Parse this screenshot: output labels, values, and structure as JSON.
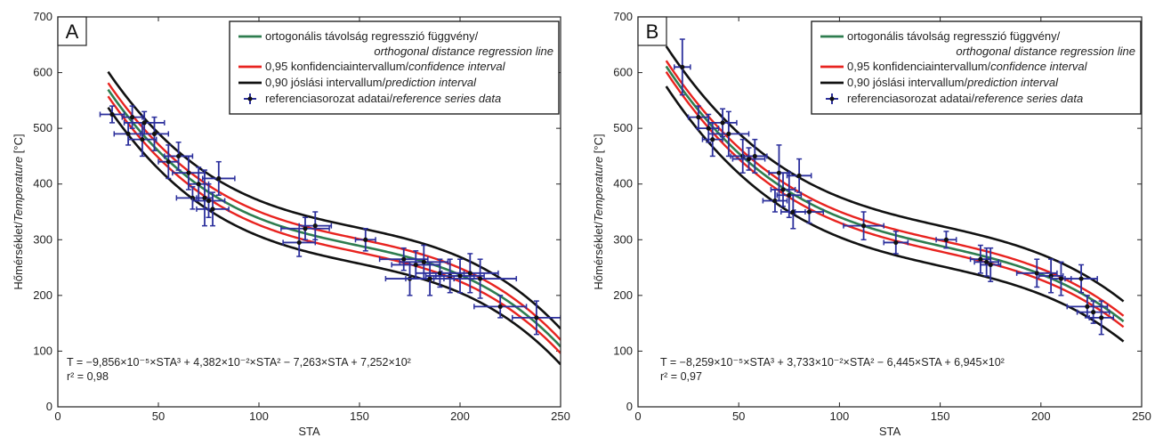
{
  "chart_data": [
    {
      "type": "scatter",
      "panel_label": "A",
      "xlabel": "STA",
      "ylabel_main": "Hőmérséklet/",
      "ylabel_italic": "Temperature",
      "ylabel_unit": " [°C]",
      "xlim": [
        0,
        250
      ],
      "ylim": [
        0,
        700
      ],
      "xticks": [
        "0",
        "50",
        "100",
        "150",
        "200",
        "250"
      ],
      "yticks": [
        "0",
        "100",
        "200",
        "300",
        "400",
        "500",
        "600",
        "700"
      ],
      "equation": "T = −9,856×10⁻⁵×STA³ + 4,382×10⁻²×STA² − 7,263×STA + 7,252×10²",
      "r2": "r² = 0,98",
      "coefficients": [
        -9.856e-05,
        0.04382,
        -7.263,
        725.2
      ],
      "curve_range": [
        25,
        250
      ],
      "bands": {
        "confidence": 12,
        "prediction": 32
      },
      "points": [
        {
          "x": 27,
          "y": 525,
          "xerr": 6,
          "yerr": 15
        },
        {
          "x": 35,
          "y": 490,
          "xerr": 7,
          "yerr": 20
        },
        {
          "x": 37,
          "y": 520,
          "xerr": 5,
          "yerr": 20
        },
        {
          "x": 42,
          "y": 480,
          "xerr": 7,
          "yerr": 30
        },
        {
          "x": 43,
          "y": 510,
          "xerr": 10,
          "yerr": 20
        },
        {
          "x": 48,
          "y": 490,
          "xerr": 7,
          "yerr": 30
        },
        {
          "x": 55,
          "y": 440,
          "xerr": 5,
          "yerr": 30
        },
        {
          "x": 60,
          "y": 450,
          "xerr": 7,
          "yerr": 25
        },
        {
          "x": 65,
          "y": 420,
          "xerr": 8,
          "yerr": 30
        },
        {
          "x": 67,
          "y": 375,
          "xerr": 8,
          "yerr": 20
        },
        {
          "x": 70,
          "y": 400,
          "xerr": 5,
          "yerr": 30
        },
        {
          "x": 73,
          "y": 375,
          "xerr": 4,
          "yerr": 50
        },
        {
          "x": 75,
          "y": 370,
          "xerr": 8,
          "yerr": 30
        },
        {
          "x": 77,
          "y": 355,
          "xerr": 8,
          "yerr": 30
        },
        {
          "x": 80,
          "y": 410,
          "xerr": 8,
          "yerr": 30
        },
        {
          "x": 120,
          "y": 295,
          "xerr": 8,
          "yerr": 25
        },
        {
          "x": 123,
          "y": 320,
          "xerr": 12,
          "yerr": 20
        },
        {
          "x": 128,
          "y": 325,
          "xerr": 8,
          "yerr": 25
        },
        {
          "x": 153,
          "y": 300,
          "xerr": 5,
          "yerr": 20
        },
        {
          "x": 172,
          "y": 265,
          "xerr": 12,
          "yerr": 20
        },
        {
          "x": 175,
          "y": 230,
          "xerr": 12,
          "yerr": 30
        },
        {
          "x": 178,
          "y": 255,
          "xerr": 12,
          "yerr": 25
        },
        {
          "x": 182,
          "y": 260,
          "xerr": 12,
          "yerr": 30
        },
        {
          "x": 185,
          "y": 230,
          "xerr": 12,
          "yerr": 30
        },
        {
          "x": 190,
          "y": 240,
          "xerr": 12,
          "yerr": 25
        },
        {
          "x": 195,
          "y": 235,
          "xerr": 12,
          "yerr": 30
        },
        {
          "x": 200,
          "y": 235,
          "xerr": 12,
          "yerr": 30
        },
        {
          "x": 205,
          "y": 240,
          "xerr": 14,
          "yerr": 35
        },
        {
          "x": 210,
          "y": 230,
          "xerr": 18,
          "yerr": 35
        },
        {
          "x": 220,
          "y": 180,
          "xerr": 13,
          "yerr": 20
        },
        {
          "x": 238,
          "y": 160,
          "xerr": 12,
          "yerr": 30
        }
      ]
    },
    {
      "type": "scatter",
      "panel_label": "B",
      "xlabel": "STA",
      "ylabel_main": "Hőmérséklet/",
      "ylabel_italic": "Temperature",
      "ylabel_unit": " [°C]",
      "xlim": [
        0,
        250
      ],
      "ylim": [
        0,
        700
      ],
      "xticks": [
        "0",
        "50",
        "100",
        "150",
        "200",
        "250"
      ],
      "yticks": [
        "0",
        "100",
        "200",
        "300",
        "400",
        "500",
        "600",
        "700"
      ],
      "equation": "T = −8,259×10⁻⁵×STA³ + 3,733×10⁻²×STA² − 6,445×STA + 6,945×10²",
      "r2": "r² = 0,97",
      "coefficients": [
        -8.259e-05,
        0.03733,
        -6.445,
        694.5
      ],
      "curve_range": [
        14,
        241
      ],
      "bands": {
        "confidence": 10,
        "prediction": 36
      },
      "points": [
        {
          "x": 22,
          "y": 610,
          "xerr": 4,
          "yerr": 50
        },
        {
          "x": 30,
          "y": 520,
          "xerr": 5,
          "yerr": 20
        },
        {
          "x": 35,
          "y": 500,
          "xerr": 5,
          "yerr": 25
        },
        {
          "x": 37,
          "y": 480,
          "xerr": 5,
          "yerr": 30
        },
        {
          "x": 42,
          "y": 510,
          "xerr": 7,
          "yerr": 25
        },
        {
          "x": 45,
          "y": 490,
          "xerr": 10,
          "yerr": 40
        },
        {
          "x": 52,
          "y": 450,
          "xerr": 6,
          "yerr": 30
        },
        {
          "x": 55,
          "y": 445,
          "xerr": 8,
          "yerr": 20
        },
        {
          "x": 58,
          "y": 450,
          "xerr": 6,
          "yerr": 30
        },
        {
          "x": 68,
          "y": 370,
          "xerr": 6,
          "yerr": 20
        },
        {
          "x": 70,
          "y": 420,
          "xerr": 5,
          "yerr": 50
        },
        {
          "x": 72,
          "y": 390,
          "xerr": 6,
          "yerr": 30
        },
        {
          "x": 75,
          "y": 380,
          "xerr": 6,
          "yerr": 40
        },
        {
          "x": 77,
          "y": 350,
          "xerr": 6,
          "yerr": 30
        },
        {
          "x": 80,
          "y": 415,
          "xerr": 6,
          "yerr": 30
        },
        {
          "x": 85,
          "y": 350,
          "xerr": 7,
          "yerr": 20
        },
        {
          "x": 112,
          "y": 325,
          "xerr": 10,
          "yerr": 25
        },
        {
          "x": 128,
          "y": 295,
          "xerr": 6,
          "yerr": 20
        },
        {
          "x": 153,
          "y": 300,
          "xerr": 5,
          "yerr": 15
        },
        {
          "x": 170,
          "y": 265,
          "xerr": 5,
          "yerr": 25
        },
        {
          "x": 173,
          "y": 260,
          "xerr": 6,
          "yerr": 25
        },
        {
          "x": 175,
          "y": 255,
          "xerr": 5,
          "yerr": 30
        },
        {
          "x": 198,
          "y": 240,
          "xerr": 10,
          "yerr": 25
        },
        {
          "x": 205,
          "y": 235,
          "xerr": 6,
          "yerr": 30
        },
        {
          "x": 210,
          "y": 230,
          "xerr": 5,
          "yerr": 30
        },
        {
          "x": 220,
          "y": 230,
          "xerr": 8,
          "yerr": 25
        },
        {
          "x": 223,
          "y": 180,
          "xerr": 10,
          "yerr": 20
        },
        {
          "x": 226,
          "y": 170,
          "xerr": 8,
          "yerr": 20
        },
        {
          "x": 230,
          "y": 160,
          "xerr": 6,
          "yerr": 30
        }
      ]
    }
  ],
  "legend": {
    "items": [
      {
        "key": "regression",
        "color": "#2e7d4f",
        "text": "ortogonális távolság regresszió függvény/",
        "italic": "orthogonal distance regression line",
        "two_line": true
      },
      {
        "key": "confidence",
        "color": "#e8231f",
        "text": "0,95 konfidenciaintervallum/",
        "italic": "confidence interval"
      },
      {
        "key": "prediction",
        "color": "#111111",
        "text": "0,90 jóslási intervallum/",
        "italic": "prediction interval"
      },
      {
        "key": "data",
        "color": "#2b2f9c",
        "text": "referenciasorozat adatai/",
        "italic": "reference series data"
      }
    ]
  }
}
